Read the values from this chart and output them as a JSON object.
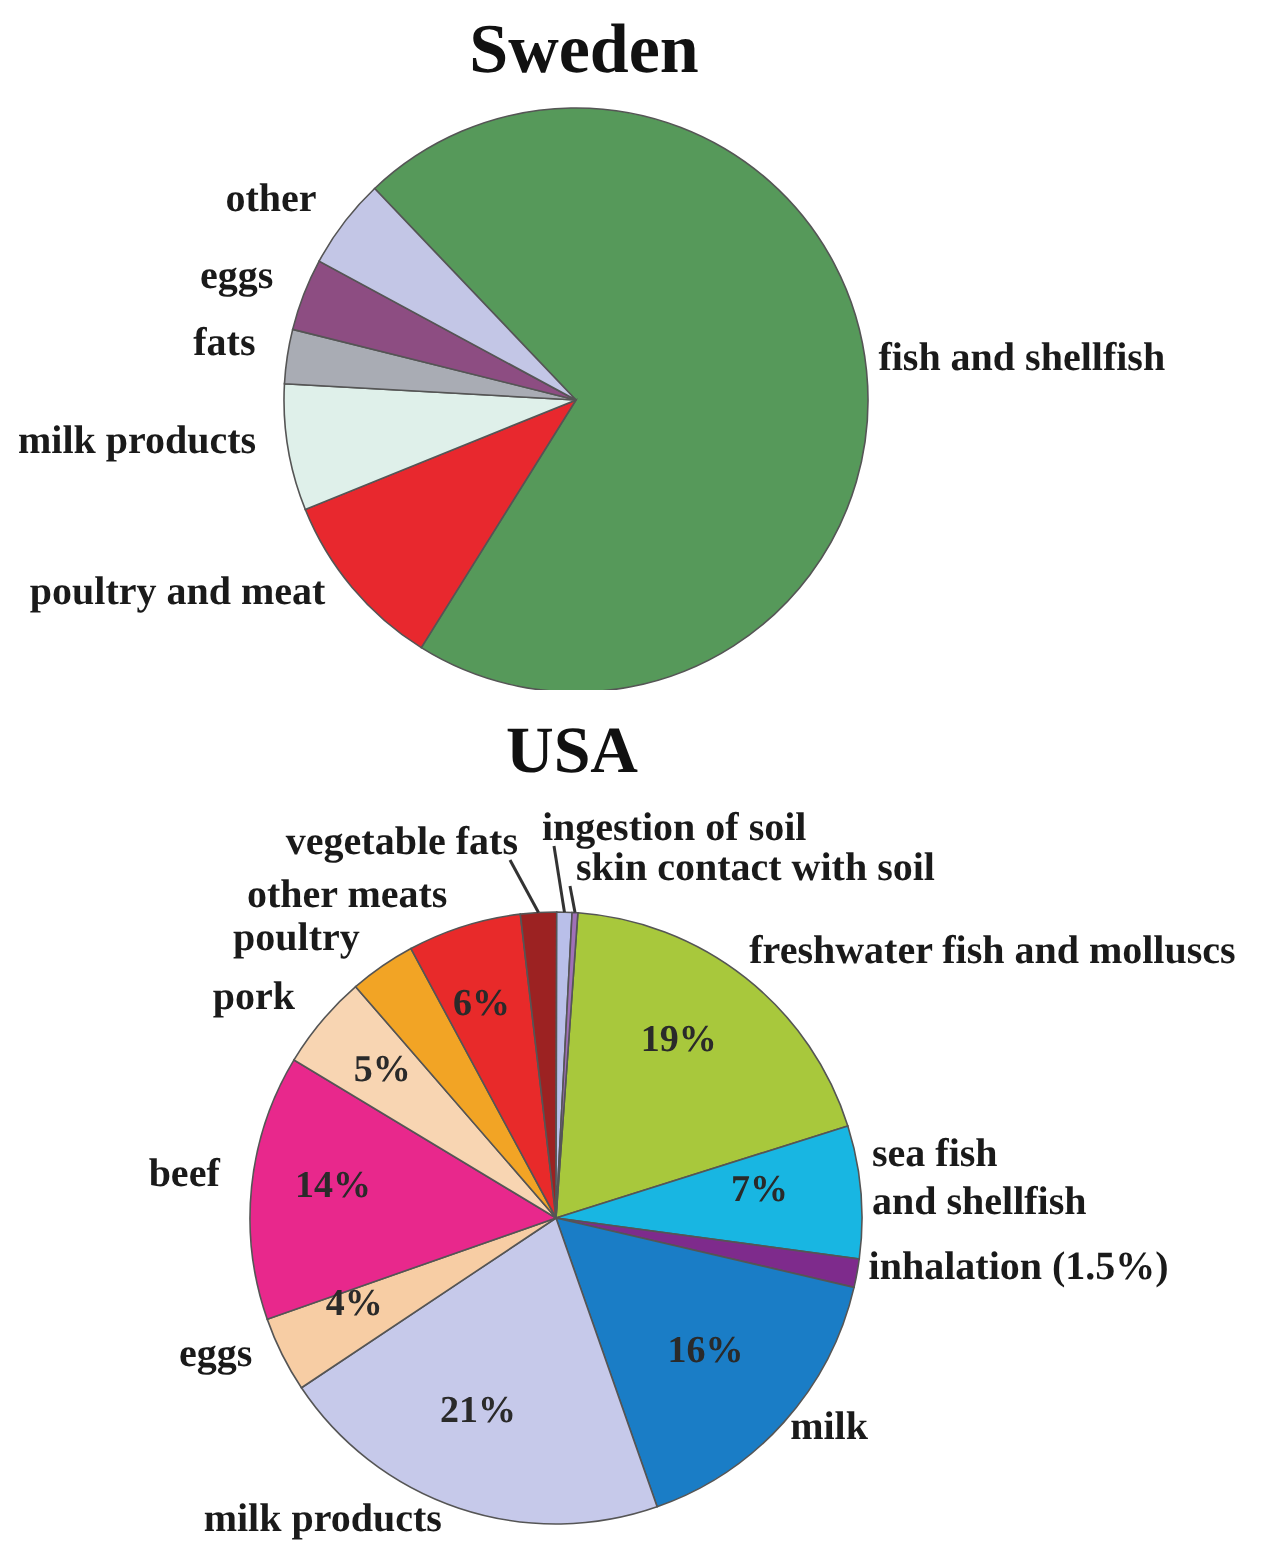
{
  "chart_data": [
    {
      "type": "pie",
      "title": "Sweden",
      "categories": [
        "fish and shellfish",
        "poultry and meat",
        "milk products",
        "fats",
        "eggs",
        "other"
      ],
      "values": [
        71,
        10,
        7,
        3,
        4,
        5
      ],
      "colors": [
        "#56995a",
        "#e8282e",
        "#dff0ea",
        "#a9acb4",
        "#8d4d82",
        "#c3c6e6"
      ]
    },
    {
      "type": "pie",
      "title": "USA",
      "categories": [
        "freshwater fish and molluscs",
        "sea fish and shellfish",
        "inhalation (1.5%)",
        "milk",
        "milk products",
        "eggs",
        "beef",
        "pork",
        "poultry",
        "other meats",
        "vegetable fats",
        "ingestion of soil",
        "skin contact with soil"
      ],
      "values": [
        19,
        7,
        1.5,
        16,
        21,
        4,
        14,
        5,
        3.5,
        6,
        1.9,
        0.8,
        0.3
      ],
      "colors": [
        "#a8c83c",
        "#18b6e2",
        "#7e2b8c",
        "#1a7dc6",
        "#c6c9ea",
        "#f7cda4",
        "#e8288c",
        "#f8d5b2",
        "#f2a425",
        "#e82a2a",
        "#9c2222",
        "#b9bfe9",
        "#a070b8"
      ],
      "value_labels": [
        "19%",
        "7%",
        null,
        "16%",
        "21%",
        "4%",
        "14%",
        "5%",
        null,
        "6%",
        null,
        null,
        null
      ]
    }
  ]
}
